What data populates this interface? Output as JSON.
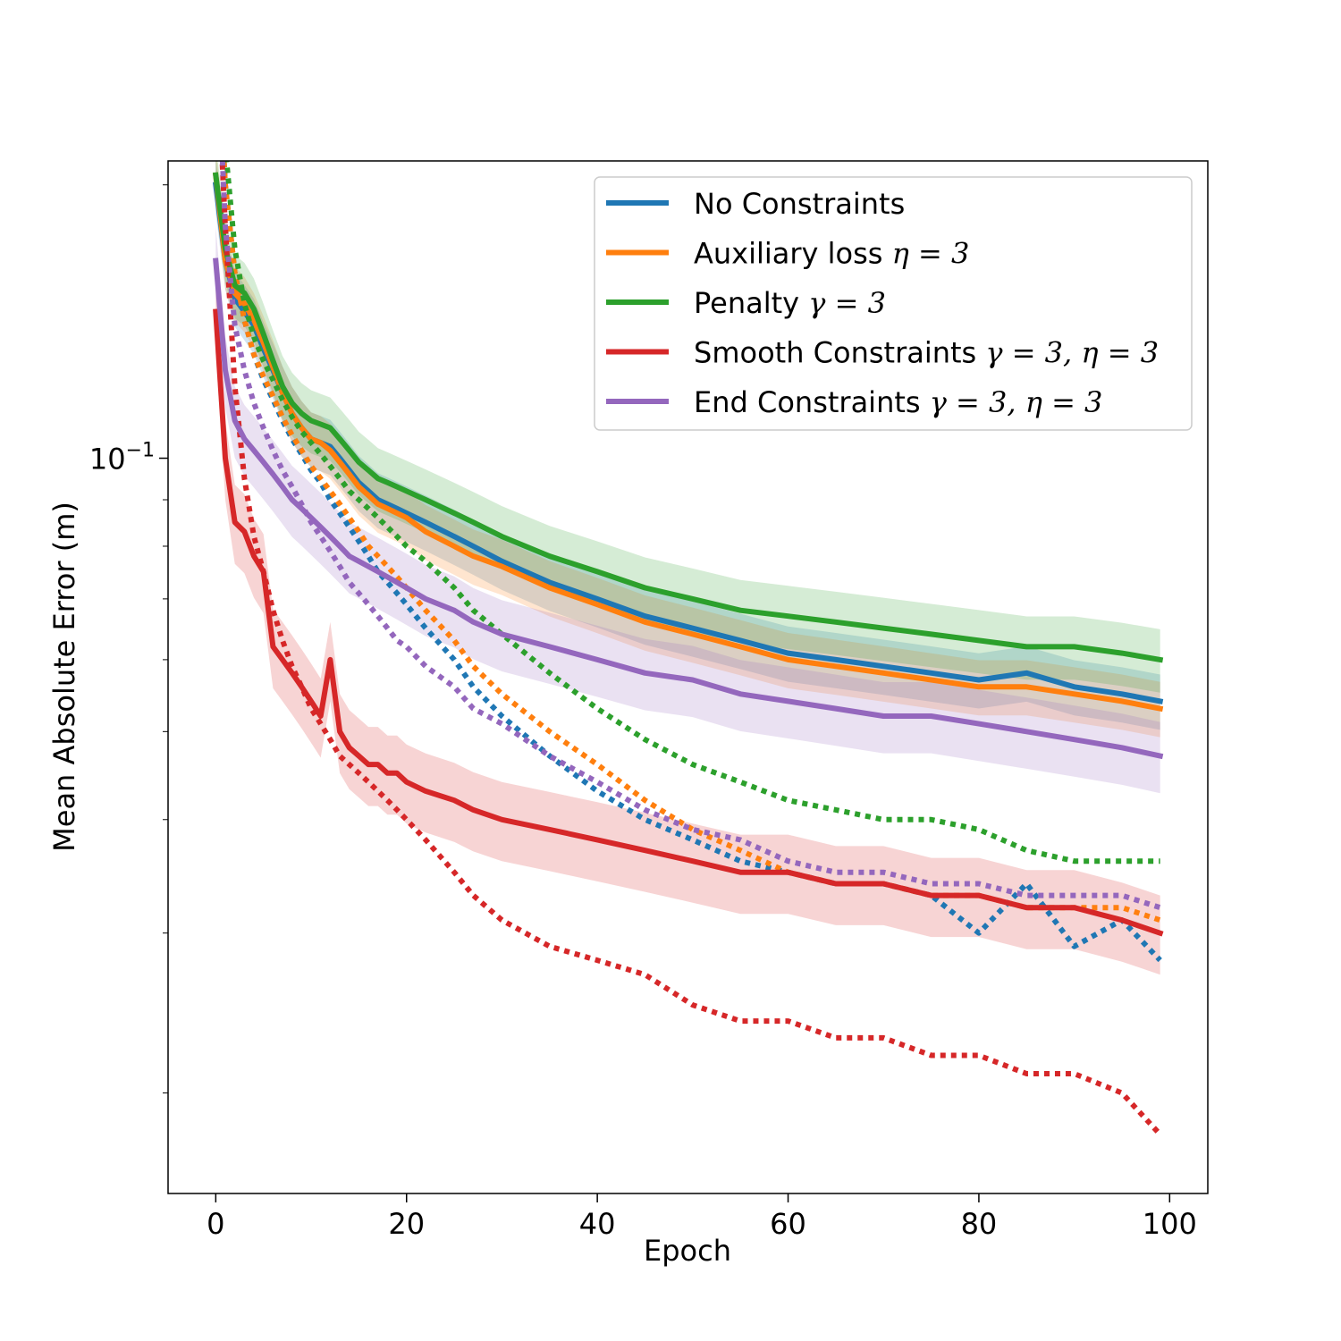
{
  "chart_data": {
    "type": "line",
    "title": "",
    "xlabel": "Epoch",
    "ylabel": "Mean Absolute Error (m)",
    "xlim": [
      -5,
      104
    ],
    "ylim": [
      0.0155,
      0.2125
    ],
    "yscale": "log",
    "x_ticks": [
      0,
      20,
      40,
      60,
      80,
      100
    ],
    "x_tick_labels": [
      "0",
      "20",
      "40",
      "60",
      "80",
      "100"
    ],
    "y_major_tick": {
      "value": 0.1,
      "base": "10",
      "exponent": "−1"
    },
    "y_minor_ticks": [
      0.02,
      0.03,
      0.04,
      0.05,
      0.06,
      0.07,
      0.08,
      0.09,
      0.2
    ],
    "grid": false,
    "legend_position": "upper-right",
    "colors": {
      "No Constraints": "#1f77b4",
      "Auxiliary loss": "#ff7f0e",
      "Penalty": "#2ca02c",
      "Smooth Constraints": "#d62728",
      "End Constraints": "#9467bd"
    },
    "legend": [
      {
        "text": "No Constraints",
        "symbols": ""
      },
      {
        "text": "Auxiliary loss ",
        "symbols": "η = 3"
      },
      {
        "text": "Penalty ",
        "symbols": "γ = 3"
      },
      {
        "text": "Smooth Constraints ",
        "symbols": "γ = 3, η = 3"
      },
      {
        "text": "End Constraints ",
        "symbols": "γ = 3, η = 3"
      }
    ],
    "x": [
      0,
      1,
      2,
      3,
      4,
      5,
      6,
      7,
      8,
      9,
      10,
      11,
      12,
      13,
      14,
      15,
      16,
      17,
      18,
      19,
      20,
      22,
      25,
      27,
      30,
      35,
      40,
      45,
      50,
      55,
      60,
      65,
      70,
      75,
      80,
      85,
      90,
      95,
      99
    ],
    "series": [
      {
        "name": "No Constraints",
        "color": "#1f77b4",
        "style": "solid",
        "band_spread": 0.07,
        "values": [
          0.2,
          0.165,
          0.15,
          0.145,
          0.14,
          0.132,
          0.125,
          0.118,
          0.112,
          0.108,
          0.105,
          0.104,
          0.103,
          0.1,
          0.097,
          0.094,
          0.092,
          0.09,
          0.089,
          0.088,
          0.087,
          0.085,
          0.082,
          0.08,
          0.077,
          0.073,
          0.07,
          0.067,
          0.065,
          0.063,
          0.061,
          0.06,
          0.059,
          0.058,
          0.057,
          0.058,
          0.056,
          0.055,
          0.054
        ]
      },
      {
        "name": "No Constraints",
        "color": "#1f77b4",
        "style": "dotted",
        "values": [
          0.31,
          0.2,
          0.16,
          0.142,
          0.13,
          0.122,
          0.116,
          0.11,
          0.105,
          0.101,
          0.097,
          0.094,
          0.09,
          0.087,
          0.084,
          0.081,
          0.078,
          0.075,
          0.073,
          0.071,
          0.069,
          0.065,
          0.06,
          0.056,
          0.052,
          0.047,
          0.043,
          0.04,
          0.038,
          0.036,
          0.035,
          0.034,
          0.034,
          0.033,
          0.03,
          0.034,
          0.029,
          0.031,
          0.028
        ]
      },
      {
        "name": "Auxiliary loss",
        "color": "#ff7f0e",
        "style": "solid",
        "band_spread": 0.07,
        "values": [
          0.205,
          0.165,
          0.152,
          0.148,
          0.142,
          0.134,
          0.126,
          0.118,
          0.112,
          0.108,
          0.105,
          0.104,
          0.102,
          0.099,
          0.096,
          0.093,
          0.091,
          0.089,
          0.088,
          0.087,
          0.086,
          0.083,
          0.08,
          0.078,
          0.076,
          0.072,
          0.069,
          0.066,
          0.064,
          0.062,
          0.06,
          0.059,
          0.058,
          0.057,
          0.056,
          0.056,
          0.055,
          0.054,
          0.053
        ]
      },
      {
        "name": "Auxiliary loss",
        "color": "#ff7f0e",
        "style": "dotted",
        "values": [
          0.31,
          0.2,
          0.16,
          0.142,
          0.13,
          0.123,
          0.117,
          0.111,
          0.106,
          0.102,
          0.098,
          0.095,
          0.092,
          0.089,
          0.086,
          0.083,
          0.08,
          0.078,
          0.076,
          0.074,
          0.072,
          0.068,
          0.063,
          0.059,
          0.055,
          0.05,
          0.046,
          0.042,
          0.039,
          0.037,
          0.035,
          0.034,
          0.034,
          0.033,
          0.033,
          0.032,
          0.032,
          0.032,
          0.031
        ]
      },
      {
        "name": "Penalty",
        "color": "#2ca02c",
        "style": "solid",
        "band_spread": 0.08,
        "values": [
          0.205,
          0.17,
          0.155,
          0.152,
          0.146,
          0.137,
          0.128,
          0.12,
          0.115,
          0.112,
          0.11,
          0.109,
          0.108,
          0.105,
          0.102,
          0.099,
          0.097,
          0.095,
          0.094,
          0.093,
          0.092,
          0.09,
          0.087,
          0.085,
          0.082,
          0.078,
          0.075,
          0.072,
          0.07,
          0.068,
          0.067,
          0.066,
          0.065,
          0.064,
          0.063,
          0.062,
          0.062,
          0.061,
          0.06
        ]
      },
      {
        "name": "Penalty",
        "color": "#2ca02c",
        "style": "dotted",
        "values": [
          0.35,
          0.22,
          0.17,
          0.148,
          0.136,
          0.128,
          0.122,
          0.116,
          0.111,
          0.107,
          0.104,
          0.101,
          0.098,
          0.095,
          0.092,
          0.09,
          0.088,
          0.086,
          0.084,
          0.082,
          0.08,
          0.077,
          0.072,
          0.068,
          0.064,
          0.058,
          0.053,
          0.049,
          0.046,
          0.044,
          0.042,
          0.041,
          0.04,
          0.04,
          0.039,
          0.037,
          0.036,
          0.036,
          0.036
        ]
      },
      {
        "name": "Smooth Constraints",
        "color": "#d62728",
        "style": "solid",
        "band_spread": 0.1,
        "values": [
          0.145,
          0.1,
          0.085,
          0.083,
          0.078,
          0.075,
          0.062,
          0.06,
          0.058,
          0.056,
          0.054,
          0.052,
          0.06,
          0.05,
          0.048,
          0.047,
          0.046,
          0.046,
          0.045,
          0.045,
          0.044,
          0.043,
          0.042,
          0.041,
          0.04,
          0.039,
          0.038,
          0.037,
          0.036,
          0.035,
          0.035,
          0.034,
          0.034,
          0.033,
          0.033,
          0.032,
          0.032,
          0.031,
          0.03
        ]
      },
      {
        "name": "Smooth Constraints",
        "color": "#d62728",
        "style": "dotted",
        "values": [
          0.3,
          0.18,
          0.12,
          0.095,
          0.082,
          0.075,
          0.068,
          0.063,
          0.059,
          0.056,
          0.053,
          0.051,
          0.049,
          0.047,
          0.046,
          0.045,
          0.044,
          0.043,
          0.042,
          0.041,
          0.04,
          0.038,
          0.035,
          0.033,
          0.031,
          0.029,
          0.028,
          0.027,
          0.025,
          0.024,
          0.024,
          0.023,
          0.023,
          0.022,
          0.022,
          0.021,
          0.021,
          0.02,
          0.018
        ]
      },
      {
        "name": "End Constraints",
        "color": "#9467bd",
        "style": "solid",
        "band_spread": 0.09,
        "values": [
          0.165,
          0.125,
          0.11,
          0.105,
          0.102,
          0.099,
          0.096,
          0.093,
          0.09,
          0.088,
          0.086,
          0.084,
          0.082,
          0.08,
          0.078,
          0.077,
          0.076,
          0.075,
          0.074,
          0.073,
          0.072,
          0.07,
          0.068,
          0.066,
          0.064,
          0.062,
          0.06,
          0.058,
          0.057,
          0.055,
          0.054,
          0.053,
          0.052,
          0.052,
          0.051,
          0.05,
          0.049,
          0.048,
          0.047
        ]
      },
      {
        "name": "End Constraints",
        "color": "#9467bd",
        "style": "dotted",
        "values": [
          0.32,
          0.18,
          0.14,
          0.125,
          0.115,
          0.108,
          0.102,
          0.097,
          0.093,
          0.089,
          0.085,
          0.082,
          0.079,
          0.076,
          0.073,
          0.071,
          0.069,
          0.067,
          0.065,
          0.063,
          0.062,
          0.059,
          0.056,
          0.053,
          0.051,
          0.047,
          0.044,
          0.041,
          0.039,
          0.038,
          0.036,
          0.035,
          0.035,
          0.034,
          0.034,
          0.033,
          0.033,
          0.033,
          0.032
        ]
      }
    ]
  }
}
